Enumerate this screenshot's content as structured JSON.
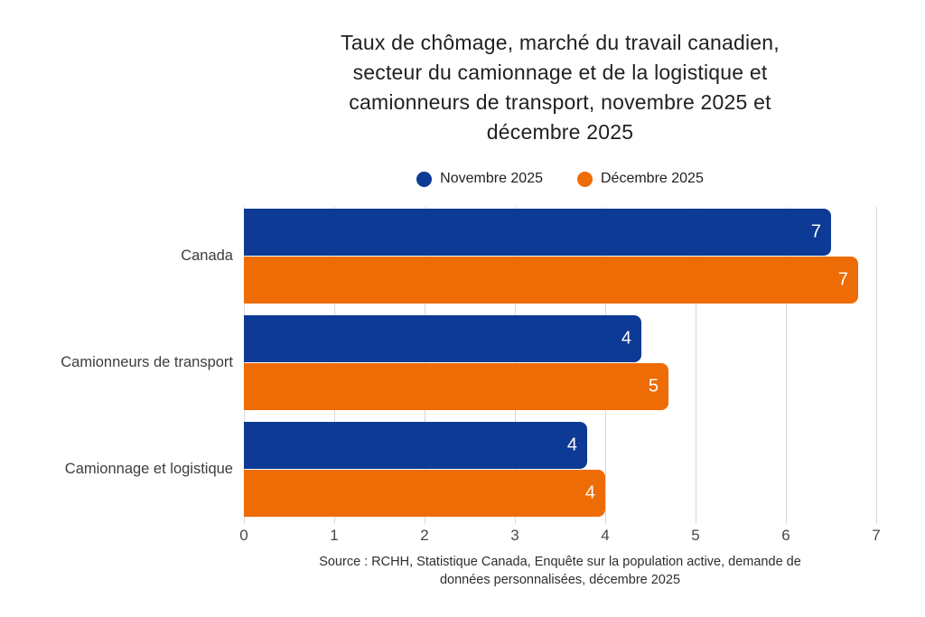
{
  "chart_data": {
    "type": "bar",
    "orientation": "horizontal",
    "title": "Taux de chômage, marché du travail canadien, secteur du camionnage et de la logistique et camionneurs de transport, novembre 2025 et décembre 2025",
    "title_lines": [
      "Taux de chômage, marché du travail canadien,",
      "secteur du camionnage et de la logistique et",
      "camionneurs de transport, novembre 2025 et",
      "décembre 2025"
    ],
    "categories": [
      "Canada",
      "Camionneurs de transport",
      "Camionnage et logistique"
    ],
    "series": [
      {
        "name": "Novembre 2025",
        "color": "#0c3a94",
        "values": [
          6.5,
          4.4,
          3.8
        ],
        "bar_labels": [
          "7",
          "4",
          "4"
        ]
      },
      {
        "name": "Décembre 2025",
        "color": "#ee6c05",
        "values": [
          6.8,
          4.7,
          4.0
        ],
        "bar_labels": [
          "7",
          "5",
          "4"
        ]
      }
    ],
    "xlim": [
      0,
      7
    ],
    "xticks": [
      "0",
      "1",
      "2",
      "3",
      "4",
      "5",
      "6",
      "7"
    ],
    "grid": "vertical-only",
    "gridline_color": "#d9d9d9",
    "legend_position": "top-center",
    "bar_label_color": "#ffffff",
    "source": "Source : RCHH, Statistique Canada, Enquête sur la population active, demande de données personnalisées, décembre 2025",
    "source_lines": [
      "Source : RCHH, Statistique Canada, Enquête sur la population active, demande de",
      "données personnalisées, décembre 2025"
    ]
  }
}
